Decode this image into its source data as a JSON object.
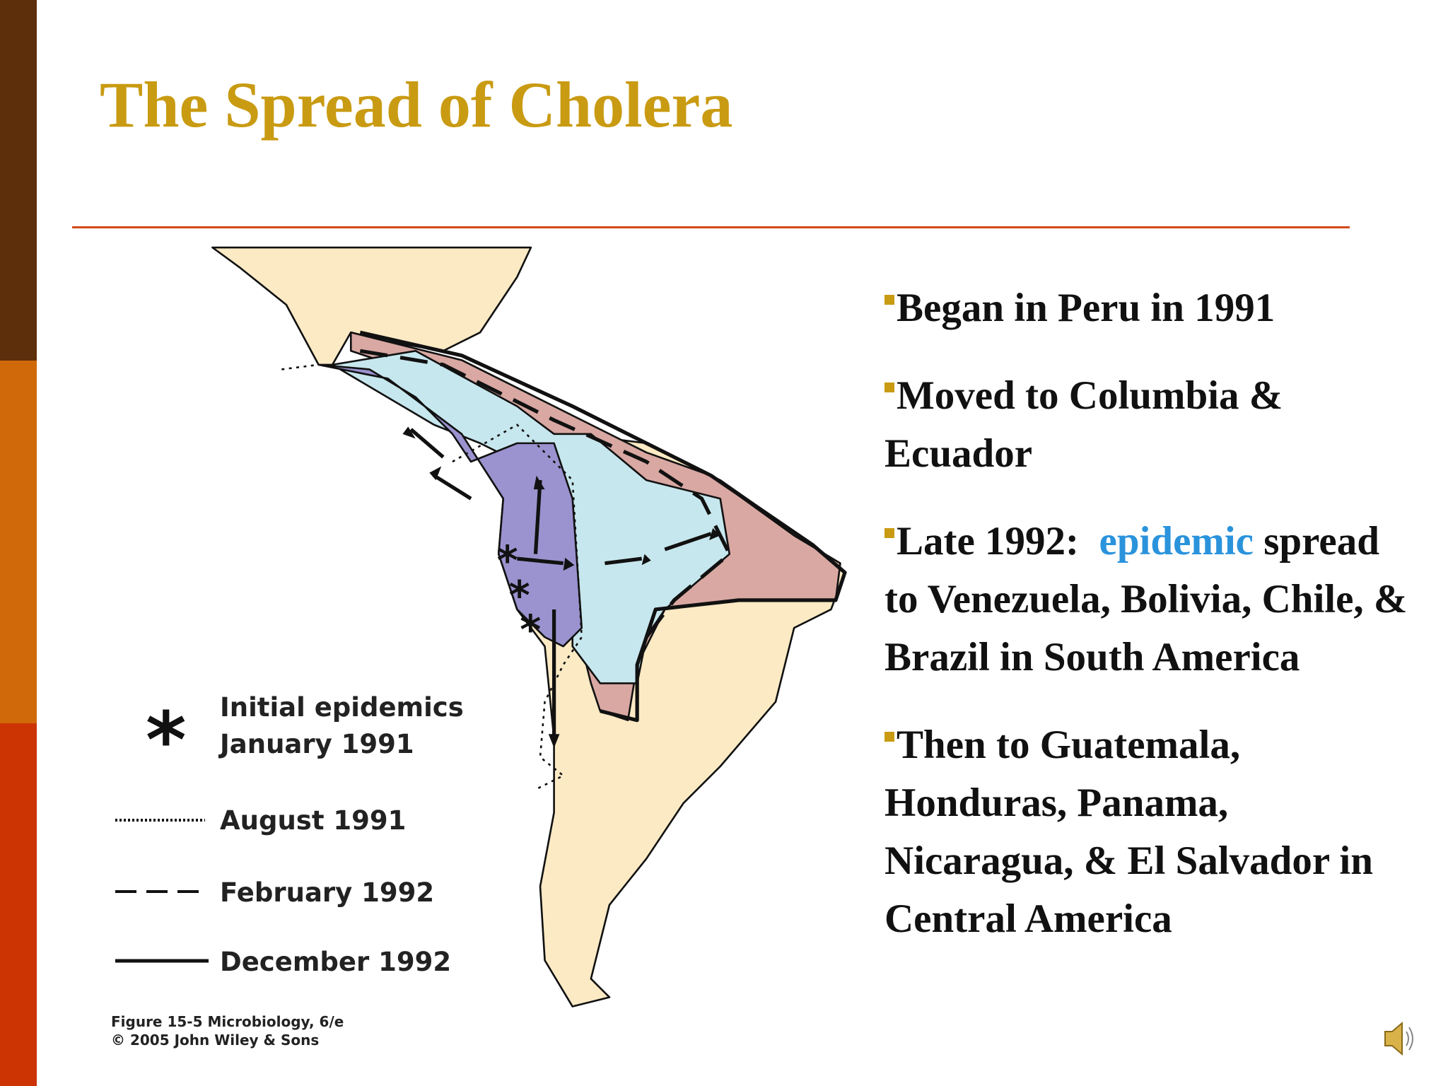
{
  "title": "The Spread of Cholera",
  "map": {
    "legend": [
      {
        "lines": [
          "Initial epidemics",
          "January 1991"
        ]
      },
      {
        "lines": [
          "August 1991"
        ]
      },
      {
        "lines": [
          "February 1992"
        ]
      },
      {
        "lines": [
          "December 1992"
        ]
      }
    ],
    "credit": [
      "Figure 15-5  Microbiology, 6/e",
      "© 2005 John Wiley & Sons"
    ]
  },
  "bullets": [
    [
      "Began in Peru in 1991"
    ],
    [
      "Moved to Columbia & Ecuador"
    ],
    [
      "Late 1992:  ",
      "epidemic",
      " spread to Venezuela, Bolivia, Chile, & Brazil in South America"
    ],
    [
      "Then to Guatemala, Honduras, Panama, Nicaragua, & El Salvador in Central America"
    ]
  ]
}
